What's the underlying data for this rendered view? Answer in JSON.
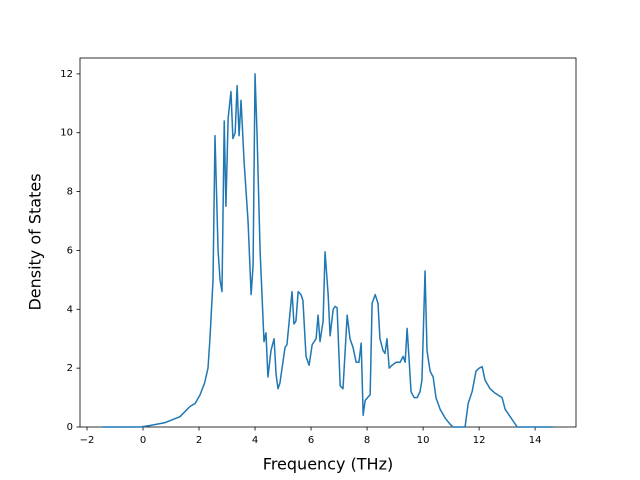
{
  "chart_data": {
    "type": "line",
    "x_label": "Frequency (THz)",
    "y_label": "Density of States",
    "x": [
      -1.46,
      -0.1,
      0.25,
      0.79,
      1.32,
      1.68,
      1.86,
      2.04,
      2.2,
      2.32,
      2.39,
      2.5,
      2.57,
      2.68,
      2.75,
      2.82,
      2.9,
      2.96,
      3.04,
      3.14,
      3.21,
      3.29,
      3.36,
      3.43,
      3.5,
      3.61,
      3.75,
      3.86,
      3.93,
      4.0,
      4.07,
      4.18,
      4.32,
      4.39,
      4.46,
      4.57,
      4.68,
      4.75,
      4.82,
      4.89,
      5.07,
      5.14,
      5.32,
      5.39,
      5.46,
      5.54,
      5.64,
      5.71,
      5.82,
      5.93,
      6.04,
      6.18,
      6.25,
      6.32,
      6.43,
      6.5,
      6.61,
      6.68,
      6.79,
      6.86,
      6.93,
      7.04,
      7.14,
      7.29,
      7.39,
      7.5,
      7.61,
      7.71,
      7.79,
      7.86,
      7.93,
      8.11,
      8.18,
      8.29,
      8.39,
      8.46,
      8.57,
      8.64,
      8.71,
      8.79,
      8.89,
      9.04,
      9.18,
      9.29,
      9.36,
      9.43,
      9.5,
      9.57,
      9.68,
      9.79,
      9.89,
      9.96,
      10.07,
      10.14,
      10.25,
      10.36,
      10.46,
      10.61,
      10.79,
      10.96,
      11.07,
      11.5,
      11.61,
      11.75,
      11.89,
      12.0,
      12.11,
      12.21,
      12.39,
      12.57,
      12.82,
      12.93,
      13.11,
      13.36,
      14.64
    ],
    "series": [
      {
        "color": "#1f77b4",
        "values": [
          0,
          0,
          0.05,
          0.15,
          0.35,
          0.7,
          0.8,
          1.1,
          1.5,
          2.0,
          3.0,
          5.0,
          9.9,
          6.0,
          5.0,
          4.6,
          10.4,
          7.5,
          10.5,
          11.4,
          9.8,
          10.0,
          11.6,
          9.9,
          11.1,
          9.0,
          7.0,
          4.5,
          5.5,
          12.0,
          10.0,
          6.0,
          2.9,
          3.2,
          1.7,
          2.6,
          3.0,
          1.8,
          1.3,
          1.5,
          2.7,
          2.8,
          4.6,
          3.5,
          3.6,
          4.6,
          4.5,
          4.3,
          2.4,
          2.1,
          2.8,
          3.0,
          3.8,
          2.9,
          3.6,
          5.95,
          4.5,
          3.1,
          4.0,
          4.1,
          4.05,
          1.4,
          1.3,
          3.8,
          3.0,
          2.7,
          2.2,
          2.2,
          2.85,
          0.4,
          0.9,
          1.1,
          4.2,
          4.5,
          4.2,
          3.0,
          2.6,
          2.5,
          3.0,
          2.0,
          2.1,
          2.2,
          2.2,
          2.4,
          2.2,
          3.35,
          2.3,
          1.2,
          1.0,
          1.0,
          1.2,
          1.6,
          5.3,
          2.6,
          1.9,
          1.7,
          1.0,
          0.6,
          0.3,
          0.1,
          0,
          0,
          0.8,
          1.2,
          1.9,
          2.0,
          2.05,
          1.6,
          1.3,
          1.15,
          1.0,
          0.6,
          0.35,
          0,
          0
        ]
      }
    ],
    "xlim": [
      -2.25,
      15.46
    ],
    "ylim": [
      0,
      12.54
    ],
    "xticks": [
      {
        "value": -2,
        "label": "−2"
      },
      0,
      2,
      4,
      6,
      8,
      10,
      12,
      14
    ],
    "yticks": [
      0,
      2,
      4,
      6,
      8,
      10,
      12
    ]
  }
}
